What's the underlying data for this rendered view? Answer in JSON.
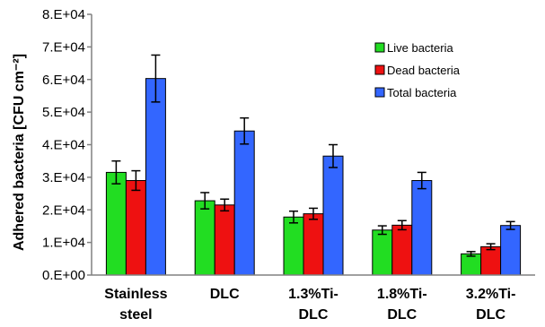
{
  "chart_data": {
    "type": "bar",
    "categories": [
      [
        "Stainless",
        "steel"
      ],
      [
        "DLC",
        ""
      ],
      [
        "1.3%Ti-",
        "DLC"
      ],
      [
        "1.8%Ti-",
        "DLC"
      ],
      [
        "3.2%Ti-",
        "DLC"
      ]
    ],
    "series": [
      {
        "name": "Live bacteria",
        "color": "#22dd22",
        "values": [
          31500,
          22800,
          17800,
          13800,
          6500
        ],
        "errors": [
          3500,
          2500,
          1800,
          1300,
          700
        ]
      },
      {
        "name": "Dead bacteria",
        "color": "#ee1111",
        "values": [
          29000,
          21500,
          18800,
          15300,
          8700
        ],
        "errors": [
          3000,
          1800,
          1700,
          1400,
          900
        ]
      },
      {
        "name": "Total bacteria",
        "color": "#3366ff",
        "values": [
          60300,
          44200,
          36500,
          29000,
          15200
        ],
        "errors": [
          7200,
          4000,
          3500,
          2500,
          1200
        ]
      }
    ],
    "ylabel": "Adhered bacteria [CFU cm⁻²]",
    "ylim": [
      0,
      80000
    ],
    "yticks": [
      0,
      10000,
      20000,
      30000,
      40000,
      50000,
      60000,
      70000,
      80000
    ],
    "ytick_labels": [
      "0.E+00",
      "1.E+04",
      "2.E+04",
      "3.E+04",
      "4.E+04",
      "5.E+04",
      "6.E+04",
      "7.E+04",
      "8.E+04"
    ],
    "legend_position": "top-right",
    "grid": false
  }
}
